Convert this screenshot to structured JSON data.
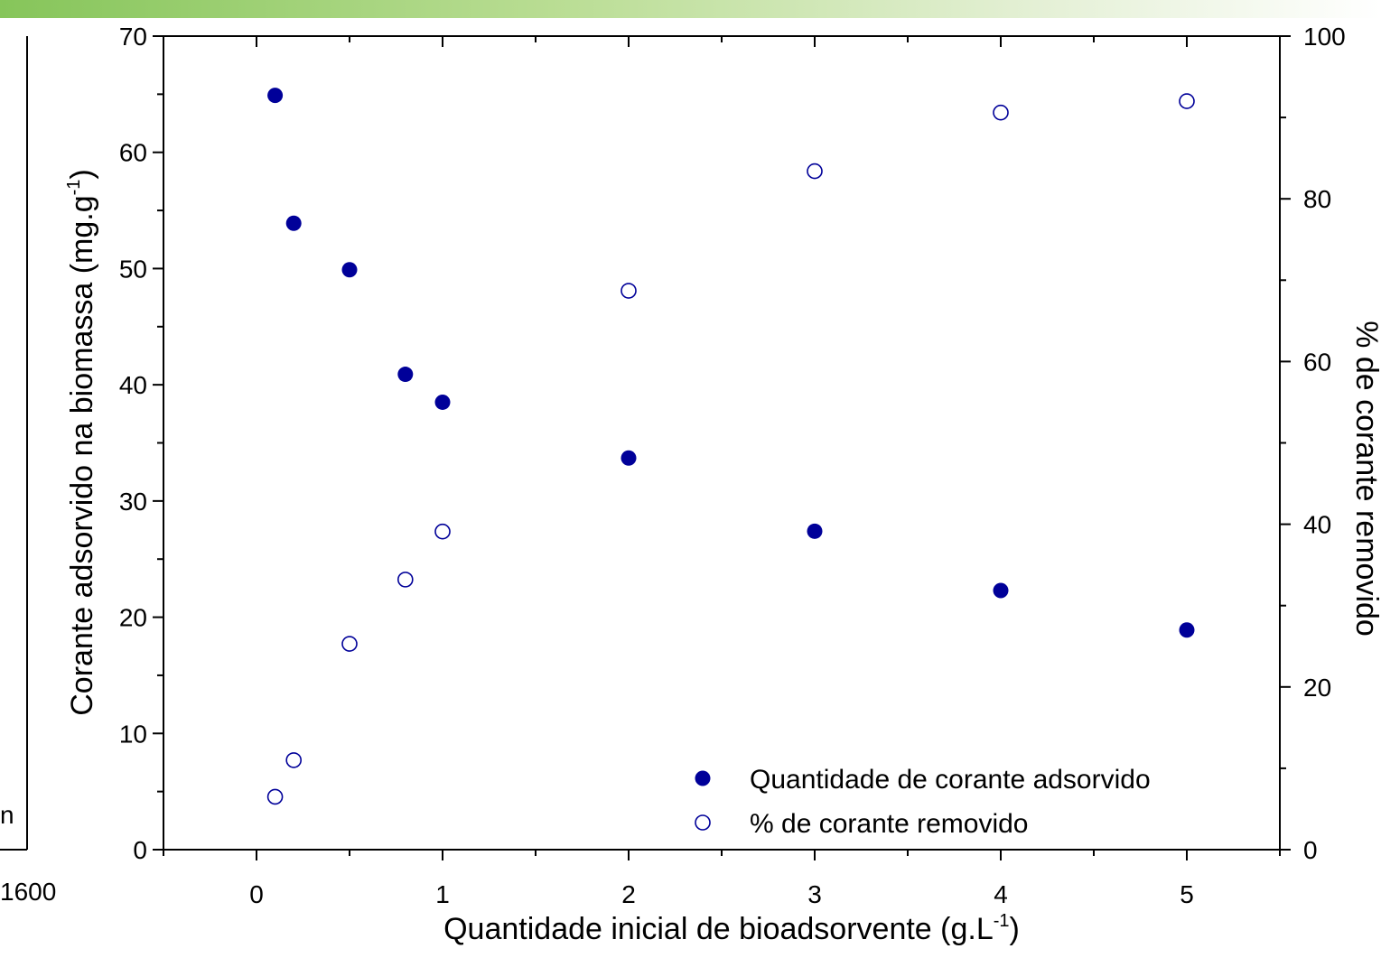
{
  "colors": {
    "marker": "#000099",
    "band_start": "#86c55a"
  },
  "left_panel": {
    "edge_tick_label": "1600",
    "edge_glyph": "n"
  },
  "chart_data": {
    "type": "scatter",
    "x": [
      0.1,
      0.2,
      0.5,
      0.8,
      1,
      2,
      3,
      4,
      5
    ],
    "xlim": [
      -0.5,
      5.5
    ],
    "xticks": [
      0,
      1,
      2,
      3,
      4,
      5
    ],
    "xtick_labels": [
      "0",
      "1",
      "2",
      "3",
      "4",
      "5"
    ],
    "xlabel": "Quantidade inicial de bioadsorvente (g.L",
    "xlabel_sup": "-1",
    "xlabel_suffix": ")",
    "ylim": [
      0,
      70
    ],
    "yticks": [
      0,
      10,
      20,
      30,
      40,
      50,
      60,
      70
    ],
    "ytick_labels": [
      "0",
      "10",
      "20",
      "30",
      "40",
      "50",
      "60",
      "70"
    ],
    "ylabel": "Corante adsorvido na biomassa  (mg.g",
    "ylabel_sup": "-1",
    "ylabel_suffix": ")",
    "y2lim": [
      0,
      100
    ],
    "y2ticks": [
      0,
      20,
      40,
      60,
      80,
      100
    ],
    "y2tick_labels": [
      "0",
      "20",
      "40",
      "60",
      "80",
      "100"
    ],
    "y2label": "% de corante removido",
    "grid": false,
    "legend_position": "bottom-right",
    "series": [
      {
        "name": "Quantidade de corante adsorvido",
        "axis": "left",
        "marker": "filled-circle",
        "values": [
          64.9,
          53.9,
          49.9,
          40.9,
          38.5,
          33.7,
          27.4,
          22.3,
          18.9
        ]
      },
      {
        "name": "% de corante removido",
        "axis": "right",
        "marker": "open-circle",
        "values": [
          6.5,
          11.0,
          25.3,
          33.2,
          39.1,
          68.7,
          83.4,
          90.6,
          92.0
        ]
      }
    ]
  }
}
